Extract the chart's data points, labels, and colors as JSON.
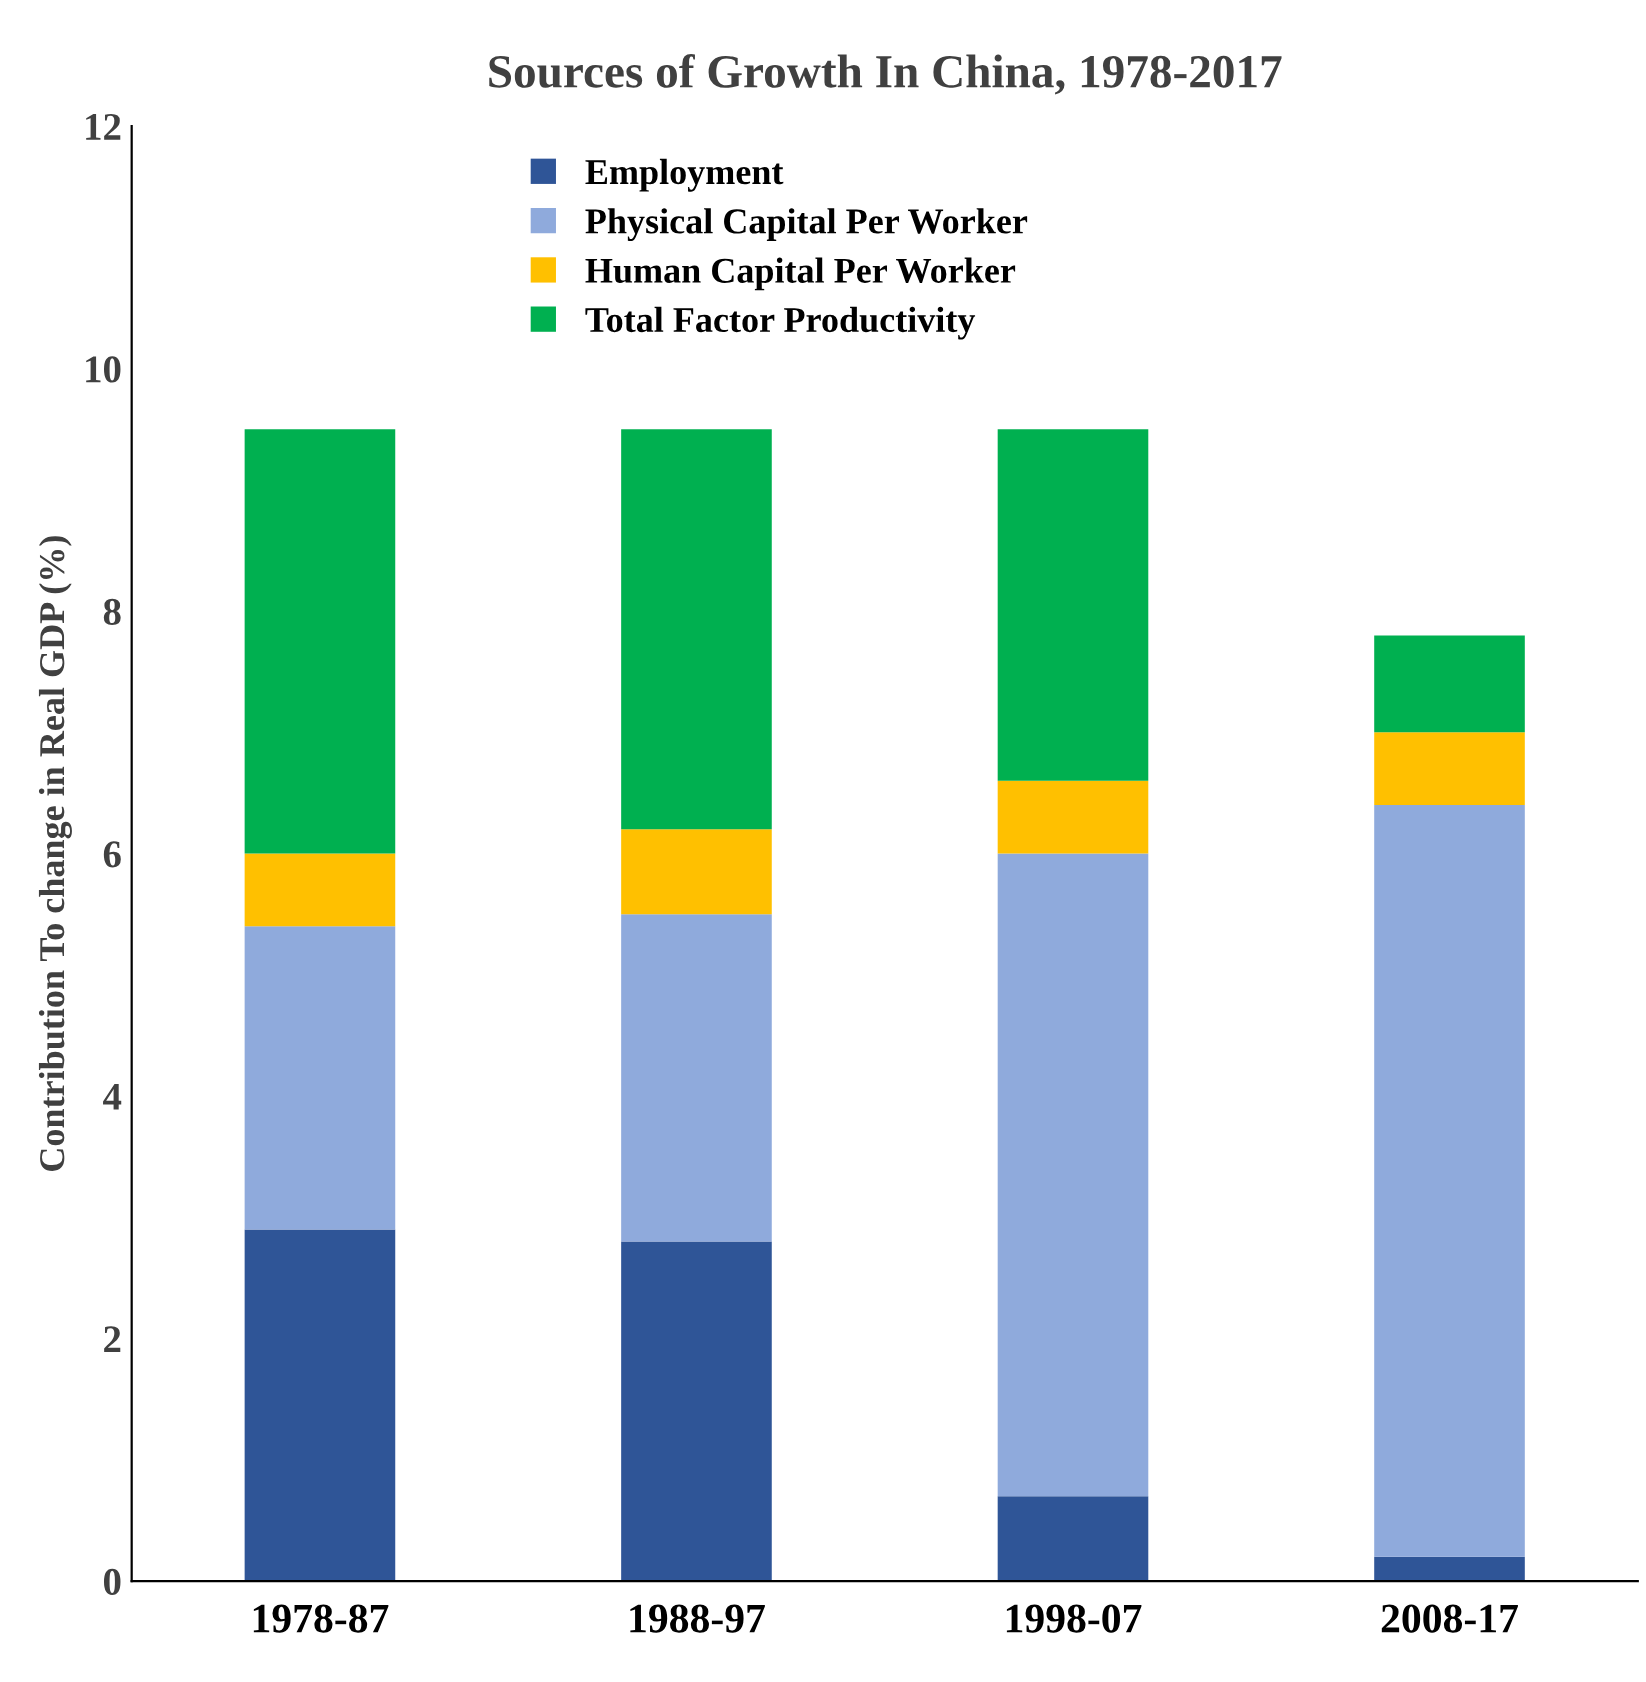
{
  "chart_data": {
    "type": "bar",
    "stacked": true,
    "title": "Sources of Growth In China, 1978-2017",
    "ylabel": "Contribution To change in Real GDP (%)",
    "categories": [
      "1978-87",
      "1988-97",
      "1998-07",
      "2008-17"
    ],
    "series": [
      {
        "name": "Employment",
        "color": "#2f5597",
        "values": [
          2.9,
          2.8,
          0.7,
          0.2
        ]
      },
      {
        "name": "Physical Capital Per Worker",
        "color": "#8faadc",
        "values": [
          2.5,
          2.7,
          5.3,
          6.2
        ]
      },
      {
        "name": "Human Capital Per Worker",
        "color": "#ffc000",
        "values": [
          0.6,
          0.7,
          0.6,
          0.6
        ]
      },
      {
        "name": "Total Factor Productivity",
        "color": "#00b050",
        "values": [
          3.5,
          3.3,
          2.9,
          0.8
        ]
      }
    ],
    "ylim": [
      0,
      12
    ],
    "yticks": [
      0,
      2,
      4,
      6,
      8,
      10,
      12
    ],
    "grid": false,
    "legend": "top"
  }
}
